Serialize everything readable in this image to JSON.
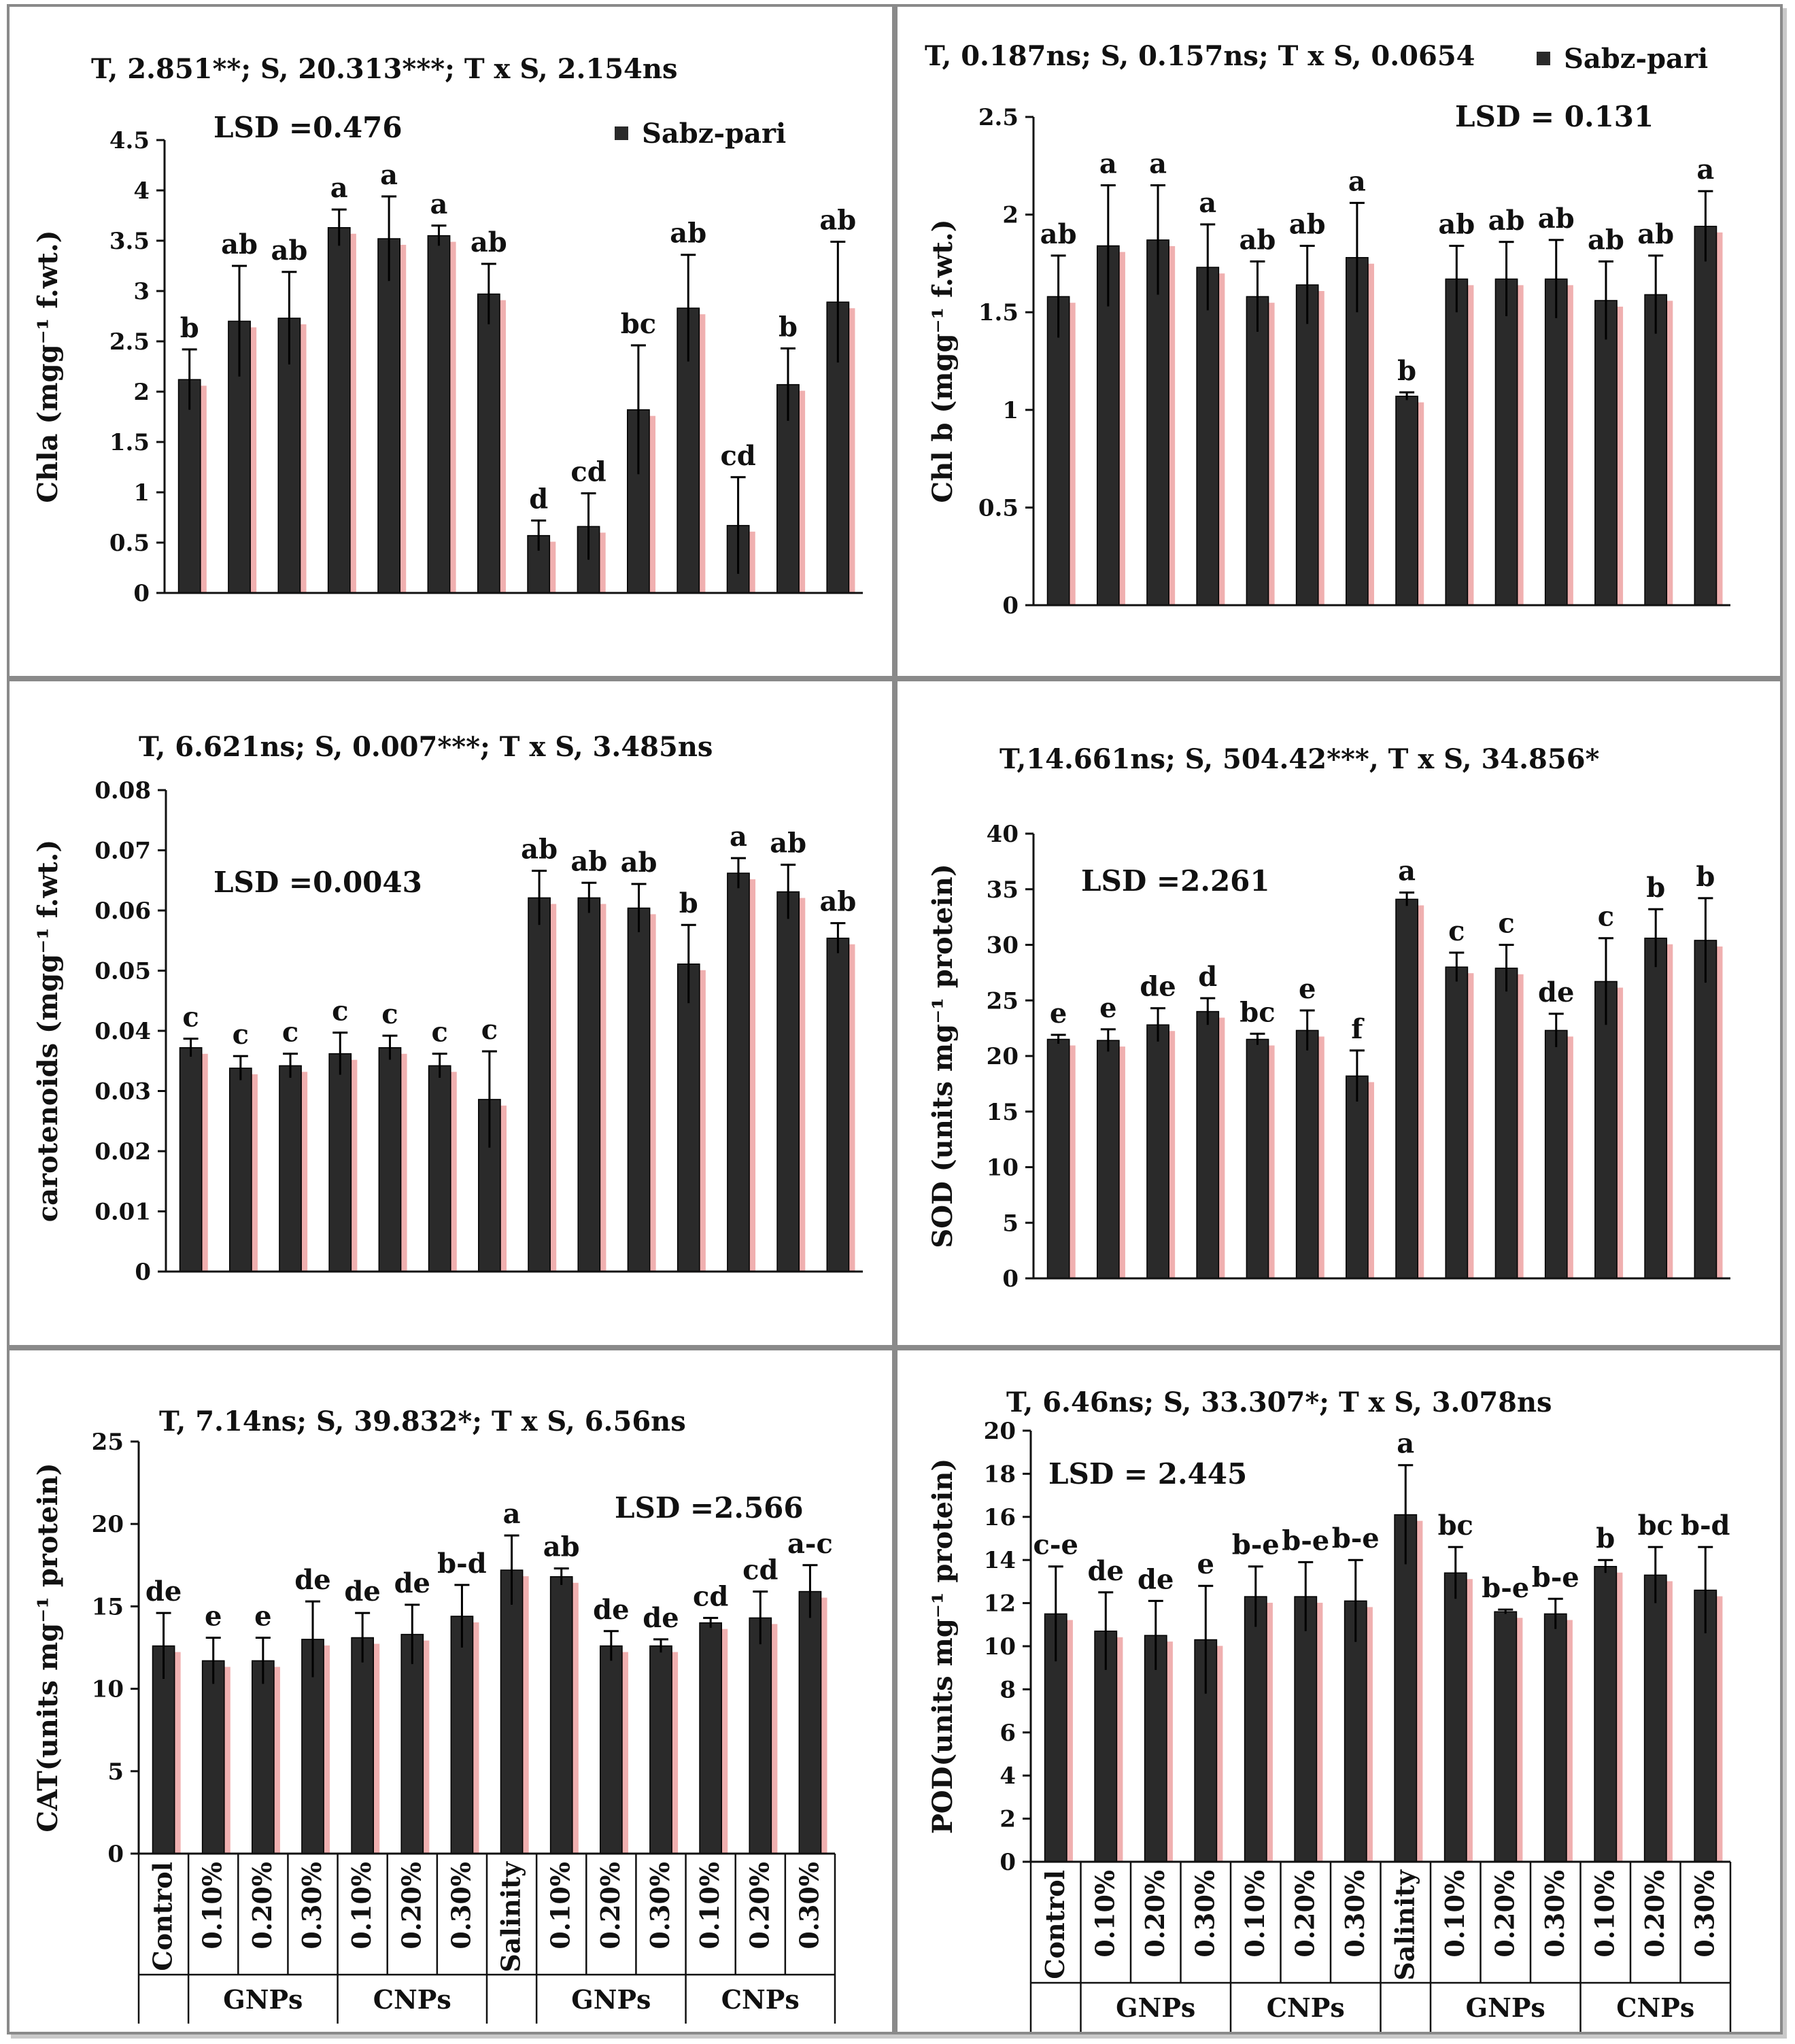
{
  "legend_label": "Sabz-pari",
  "x_categories": [
    "Control",
    "0.10%",
    "0.20%",
    "0.30%",
    "0.10%",
    "0.20%",
    "0.30%",
    "Salinity",
    "0.10%",
    "0.20%",
    "0.30%",
    "0.10%",
    "0.20%",
    "0.30%"
  ],
  "x_groups": [
    {
      "label": "GNPs",
      "from": 1,
      "to": 3
    },
    {
      "label": "CNPs",
      "from": 4,
      "to": 6
    },
    {
      "label": "GNPs",
      "from": 8,
      "to": 10
    },
    {
      "label": "CNPs",
      "from": 11,
      "to": 13
    }
  ],
  "colors": {
    "bar": "#2a2a2a",
    "shadow": "#f0b0b0",
    "axis": "#111111",
    "panel_border": "#8a8a8a"
  },
  "chart_data": [
    {
      "id": "chla",
      "type": "bar",
      "title": "T, 2.851**; S, 20.313***;  T x S, 2.154ns",
      "lsd": "LSD =0.476",
      "ylabel": "Chla (mgg⁻¹ f.wt.)",
      "ylim": [
        0,
        4.5
      ],
      "yticks": [
        "0",
        "0.5",
        "1",
        "1.5",
        "2",
        "2.5",
        "3",
        "3.5",
        "4",
        "4.5"
      ],
      "show_legend": true,
      "show_xlabels": false,
      "values": [
        2.12,
        2.7,
        2.73,
        3.63,
        3.52,
        3.55,
        2.97,
        0.57,
        0.66,
        1.82,
        2.83,
        0.67,
        2.07,
        2.89
      ],
      "errors": [
        0.3,
        0.55,
        0.46,
        0.18,
        0.42,
        0.1,
        0.3,
        0.15,
        0.33,
        0.64,
        0.53,
        0.48,
        0.36,
        0.6
      ],
      "letters": [
        "b",
        "ab",
        "ab",
        "a",
        "a",
        "a",
        "ab",
        "d",
        "cd",
        "bc",
        "ab",
        "cd",
        "b",
        "ab"
      ]
    },
    {
      "id": "chlb",
      "type": "bar",
      "title": "T, 0.187ns; S, 0.157ns; T x S, 0.0654",
      "lsd": "LSD = 0.131",
      "ylabel": "Chl b (mgg⁻¹ f.wt.)",
      "ylim": [
        0,
        2.5
      ],
      "yticks": [
        "0",
        "0.5",
        "1",
        "1.5",
        "2",
        "2.5"
      ],
      "show_legend": true,
      "show_xlabels": false,
      "values": [
        1.58,
        1.84,
        1.87,
        1.73,
        1.58,
        1.64,
        1.78,
        1.07,
        1.67,
        1.67,
        1.67,
        1.56,
        1.59,
        1.94
      ],
      "errors": [
        0.21,
        0.31,
        0.28,
        0.22,
        0.18,
        0.2,
        0.28,
        0.02,
        0.17,
        0.19,
        0.2,
        0.2,
        0.2,
        0.18
      ],
      "letters": [
        "ab",
        "a",
        "a",
        "a",
        "ab",
        "ab",
        "a",
        "b",
        "ab",
        "ab",
        "ab",
        "ab",
        "ab",
        "a"
      ]
    },
    {
      "id": "carotenoids",
      "type": "bar",
      "title": "T, 6.621ns; S, 0.007***; T x S, 3.485ns",
      "lsd": "LSD =0.0043",
      "ylabel": "carotenoids (mgg⁻¹ f.wt.)",
      "ylim": [
        0,
        0.08
      ],
      "yticks": [
        "0",
        "0.01",
        "0.02",
        "0.03",
        "0.04",
        "0.05",
        "0.06",
        "0.07",
        "0.08"
      ],
      "show_legend": false,
      "show_xlabels": false,
      "values": [
        0.0372,
        0.0338,
        0.0342,
        0.0362,
        0.0372,
        0.0342,
        0.0286,
        0.0621,
        0.0621,
        0.0604,
        0.0511,
        0.0662,
        0.0631,
        0.0554
      ],
      "errors": [
        0.0015,
        0.002,
        0.002,
        0.0035,
        0.002,
        0.002,
        0.008,
        0.0045,
        0.0025,
        0.004,
        0.0065,
        0.0025,
        0.0045,
        0.0025
      ],
      "letters": [
        "c",
        "c",
        "c",
        "c",
        "c",
        "c",
        "c",
        "ab",
        "ab",
        "ab",
        "b",
        "a",
        "ab",
        "ab"
      ]
    },
    {
      "id": "sod",
      "type": "bar",
      "title": "T,14.661ns; S, 504.42***, T x S, 34.856*",
      "lsd": "LSD =2.261",
      "ylabel": "SOD (units mg⁻¹ protein)",
      "ylim": [
        0,
        40
      ],
      "yticks": [
        "0",
        "5",
        "10",
        "15",
        "20",
        "25",
        "30",
        "35",
        "40"
      ],
      "show_legend": false,
      "show_xlabels": false,
      "values": [
        21.5,
        21.4,
        22.8,
        24.0,
        21.5,
        22.3,
        18.2,
        34.1,
        28.0,
        27.9,
        22.3,
        26.7,
        30.6,
        30.4
      ],
      "errors": [
        0.4,
        1.0,
        1.5,
        1.2,
        0.5,
        1.8,
        2.3,
        0.6,
        1.3,
        2.1,
        1.5,
        3.9,
        2.6,
        3.8
      ],
      "letters": [
        "e",
        "e",
        "de",
        "d",
        "bc",
        "e",
        "f",
        "a",
        "c",
        "c",
        "de",
        "c",
        "b",
        "b"
      ]
    },
    {
      "id": "cat",
      "type": "bar",
      "title": "T, 7.14ns; S, 39.832*; T x S, 6.56ns",
      "lsd": "LSD =2.566",
      "ylabel": "CAT(units mg⁻¹ protein)",
      "ylim": [
        0,
        25
      ],
      "yticks": [
        "0",
        "5",
        "10",
        "15",
        "20",
        "25"
      ],
      "show_legend": false,
      "show_xlabels": true,
      "values": [
        12.6,
        11.7,
        11.7,
        13.0,
        13.1,
        13.3,
        14.4,
        17.2,
        16.8,
        12.6,
        12.6,
        14.0,
        14.3,
        15.9
      ],
      "errors": [
        2.0,
        1.4,
        1.4,
        2.3,
        1.5,
        1.8,
        1.9,
        2.1,
        0.5,
        0.9,
        0.4,
        0.3,
        1.6,
        1.6
      ],
      "letters": [
        "de",
        "e",
        "e",
        "de",
        "de",
        "de",
        "b-d",
        "a",
        "ab",
        "de",
        "de",
        "cd",
        "cd",
        "a-c"
      ]
    },
    {
      "id": "pod",
      "type": "bar",
      "title": "T, 6.46ns; S, 33.307*;  T x S, 3.078ns",
      "lsd": "LSD = 2.445",
      "ylabel": "POD(units mg⁻¹ protein)",
      "ylim": [
        0,
        20
      ],
      "yticks": [
        "0",
        "2",
        "4",
        "6",
        "8",
        "10",
        "12",
        "14",
        "16",
        "18",
        "20"
      ],
      "show_legend": false,
      "show_xlabels": true,
      "values": [
        11.5,
        10.7,
        10.5,
        10.3,
        12.3,
        12.3,
        12.1,
        16.1,
        13.4,
        11.6,
        11.5,
        13.7,
        13.3,
        12.6
      ],
      "errors": [
        2.2,
        1.8,
        1.6,
        2.5,
        1.4,
        1.6,
        1.9,
        2.3,
        1.2,
        0.1,
        0.7,
        0.3,
        1.3,
        2.0
      ],
      "letters": [
        "c-e",
        "de",
        "de",
        "e",
        "b-e",
        "b-e",
        "b-e",
        "a",
        "bc",
        "b-e",
        "b-e",
        "b",
        "bc",
        "b-d"
      ]
    }
  ]
}
